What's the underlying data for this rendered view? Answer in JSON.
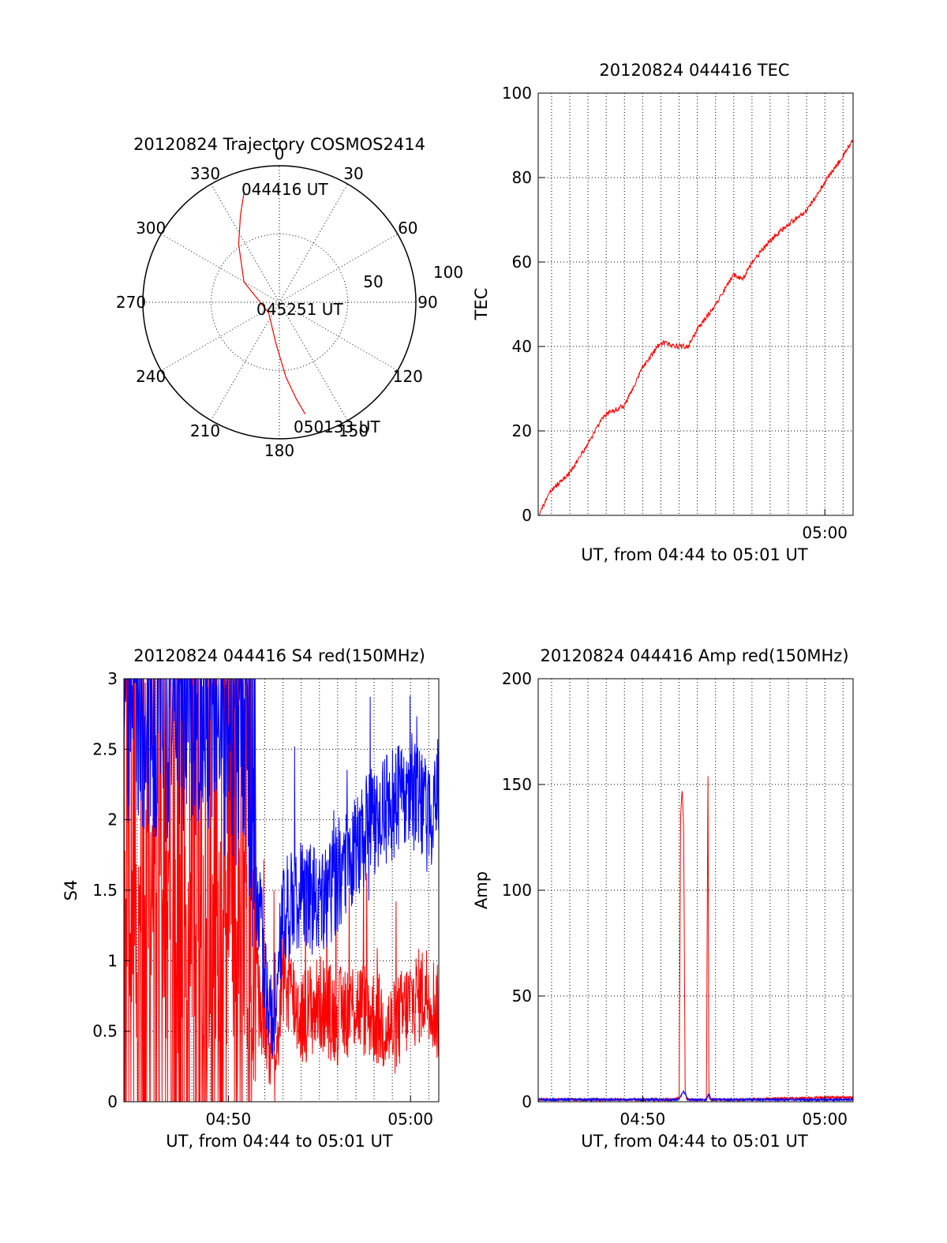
{
  "chart_data": [
    {
      "id": "trajectory",
      "type": "polar",
      "title": "20120824 Trajectory COSMOS2414",
      "angle_labels": [
        "0",
        "30",
        "60",
        "90",
        "120",
        "150",
        "180",
        "210",
        "240",
        "270",
        "300",
        "330"
      ],
      "radial_labels": [
        "50",
        "100"
      ],
      "rlim": [
        0,
        100
      ],
      "grid": true,
      "annotations": [
        "044416 UT",
        "045251 UT",
        "050133 UT"
      ],
      "track": {
        "color": "#ff0000",
        "points": [
          {
            "az": 342,
            "r": 84,
            "label": "044416 UT"
          },
          {
            "az": 336,
            "r": 70
          },
          {
            "az": 325,
            "r": 52
          },
          {
            "az": 300,
            "r": 30
          },
          {
            "az": 225,
            "r": 11,
            "label": "045251 UT"
          },
          {
            "az": 185,
            "r": 30
          },
          {
            "az": 175,
            "r": 55
          },
          {
            "az": 170,
            "r": 72
          },
          {
            "az": 167,
            "r": 84,
            "label": "050133 UT"
          }
        ]
      }
    },
    {
      "id": "tec",
      "type": "line",
      "title": "20120824 044416 TEC",
      "ylabel": "TEC",
      "xlabel": "UT, from 04:44 to 05:01 UT",
      "xlim": [
        "04:44:16",
        "05:01:33"
      ],
      "ylim": [
        0,
        100
      ],
      "yticks": [
        "0",
        "20",
        "40",
        "60",
        "80",
        "100"
      ],
      "xticks": [
        {
          "t": "05:00:00",
          "label": "05:00"
        }
      ],
      "grid": true,
      "series": [
        {
          "color": "#ff0000",
          "x": [
            "04:44:16",
            "04:45:00",
            "04:46:00",
            "04:47:00",
            "04:47:30",
            "04:48:00",
            "04:49:00",
            "04:50:00",
            "04:51:00",
            "04:52:00",
            "04:52:30",
            "04:53:00",
            "04:54:00",
            "04:55:00",
            "04:55:30",
            "04:56:00",
            "04:57:00",
            "04:58:00",
            "04:59:00",
            "05:00:00",
            "05:01:00",
            "05:01:33"
          ],
          "values": [
            0,
            6,
            10,
            17,
            21,
            24,
            26,
            35,
            41,
            40,
            40,
            44,
            50,
            57,
            56,
            60,
            65,
            69,
            72,
            79,
            85,
            89
          ]
        }
      ]
    },
    {
      "id": "s4",
      "type": "line",
      "title": "20120824 044416 S4 red(150MHz)",
      "ylabel": "S4",
      "xlabel": "UT, from 04:44 to 05:01 UT",
      "xlim": [
        "04:44:16",
        "05:01:33"
      ],
      "ylim": [
        0,
        3
      ],
      "yticks": [
        "0",
        "0.5",
        "1",
        "1.5",
        "2",
        "2.5",
        "3"
      ],
      "xticks": [
        {
          "t": "04:50:00",
          "label": "04:50"
        },
        {
          "t": "05:00:00",
          "label": "05:00"
        }
      ],
      "grid": true,
      "series": [
        {
          "color": "#ff0000",
          "x": [
            "04:44:16",
            "04:45:00",
            "04:46:00",
            "04:47:00",
            "04:48:00",
            "04:49:00",
            "04:50:00",
            "04:51:00",
            "04:51:30",
            "04:52:00",
            "04:52:30",
            "04:53:00",
            "04:54:00",
            "04:55:00",
            "04:56:00",
            "04:57:00",
            "04:58:00",
            "04:59:00",
            "05:00:00",
            "05:01:00",
            "05:01:33"
          ],
          "values": [
            1.8,
            1.2,
            1.5,
            1.0,
            1.4,
            0.9,
            1.2,
            1.1,
            0.8,
            0.6,
            0.2,
            0.9,
            0.6,
            0.7,
            0.6,
            0.7,
            0.6,
            0.5,
            0.7,
            0.8,
            0.6
          ]
        },
        {
          "color": "#0000ff",
          "x": [
            "04:44:16",
            "04:45:00",
            "04:46:00",
            "04:47:00",
            "04:48:00",
            "04:49:00",
            "04:50:00",
            "04:51:00",
            "04:51:30",
            "04:52:00",
            "04:52:30",
            "04:53:00",
            "04:54:00",
            "04:55:00",
            "04:56:00",
            "04:57:00",
            "04:58:00",
            "04:59:00",
            "05:00:00",
            "05:01:00",
            "05:01:33"
          ],
          "values": [
            2.6,
            2.8,
            2.5,
            2.7,
            2.6,
            2.7,
            2.5,
            2.4,
            1.6,
            0.9,
            0.6,
            1.4,
            1.5,
            1.4,
            1.6,
            1.8,
            2.0,
            2.1,
            2.2,
            2.0,
            2.3
          ]
        }
      ]
    },
    {
      "id": "amp",
      "type": "line",
      "title": "20120824 044416 Amp red(150MHz)",
      "ylabel": "Amp",
      "xlabel": "UT, from 04:44 to 05:01 UT",
      "xlim": [
        "04:44:16",
        "05:01:33"
      ],
      "ylim": [
        0,
        200
      ],
      "yticks": [
        "0",
        "50",
        "100",
        "150",
        "200"
      ],
      "xticks": [
        {
          "t": "04:50:00",
          "label": "04:50"
        },
        {
          "t": "05:00:00",
          "label": "05:00"
        }
      ],
      "grid": true,
      "series": [
        {
          "color": "#ff0000",
          "x": [
            "04:44:16",
            "04:51:40",
            "04:52:00",
            "04:52:05",
            "04:52:10",
            "04:52:15",
            "04:52:20",
            "04:52:25",
            "04:53:30",
            "04:53:35",
            "04:53:38",
            "04:53:41",
            "04:55:00",
            "05:00:00",
            "05:01:33"
          ],
          "values": [
            1,
            1,
            2,
            135,
            148,
            130,
            5,
            1,
            1,
            160,
            2,
            1,
            1,
            2,
            2
          ]
        },
        {
          "color": "#0000ff",
          "x": [
            "04:44:16",
            "04:48:00",
            "04:50:00",
            "04:52:00",
            "04:52:15",
            "04:52:30",
            "04:53:30",
            "04:53:38",
            "04:53:45",
            "04:56:00",
            "05:00:00",
            "05:01:33"
          ],
          "values": [
            1,
            1,
            1,
            1,
            5,
            1,
            1,
            4,
            1,
            1,
            1,
            1
          ]
        }
      ]
    }
  ]
}
